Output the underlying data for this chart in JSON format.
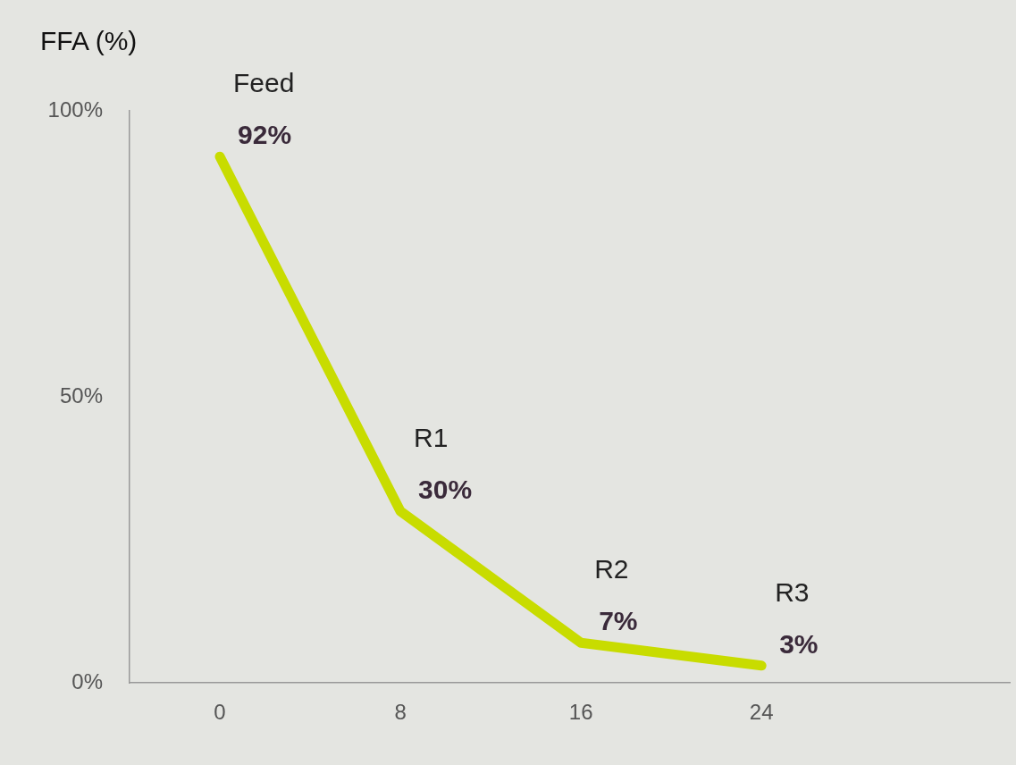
{
  "chart_data": {
    "type": "line",
    "ylabel": "FFA (%)",
    "x": [
      0,
      8,
      16,
      24
    ],
    "series": [
      {
        "color": "#c8dc00",
        "values": [
          92,
          30,
          7,
          3
        ],
        "value_labels": [
          "92%",
          "30%",
          "7%",
          "3%"
        ]
      }
    ],
    "annotations": [
      {
        "text": "Feed",
        "x": 0,
        "y": 92
      },
      {
        "text": "R1",
        "x": 8,
        "y": 30
      },
      {
        "text": "R2",
        "x": 16,
        "y": 7
      },
      {
        "text": "R3",
        "x": 24,
        "y": 3
      }
    ],
    "xlim": [
      -4,
      35
    ],
    "xticks": [
      0,
      8,
      16,
      24
    ],
    "ylim": [
      0,
      100
    ],
    "yticks": [
      {
        "value": 0,
        "label": "0%"
      },
      {
        "value": 50,
        "label": "50%"
      },
      {
        "value": 100,
        "label": "100%"
      }
    ],
    "grid": false,
    "legend": false,
    "marker": "none",
    "line_style": "solid"
  }
}
